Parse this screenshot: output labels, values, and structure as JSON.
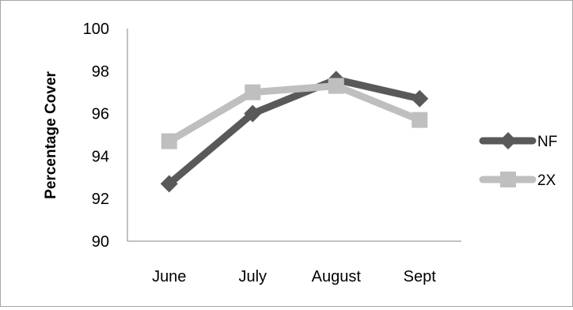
{
  "chart_data": {
    "type": "line",
    "categories": [
      "June",
      "July",
      "August",
      "Sept"
    ],
    "series": [
      {
        "name": "NF",
        "values": [
          92.7,
          96.0,
          97.6,
          96.7
        ],
        "color": "#595959",
        "marker": "diamond"
      },
      {
        "name": "2X",
        "values": [
          94.7,
          97.0,
          97.3,
          95.7
        ],
        "color": "#bfbfbf",
        "marker": "square"
      }
    ],
    "title": "",
    "xlabel": "",
    "ylabel": "Percentage Cover",
    "ylim": [
      90,
      100
    ],
    "yticks": [
      "90",
      "92",
      "94",
      "96",
      "98",
      "100"
    ],
    "grid": false,
    "legend_position": "right"
  }
}
